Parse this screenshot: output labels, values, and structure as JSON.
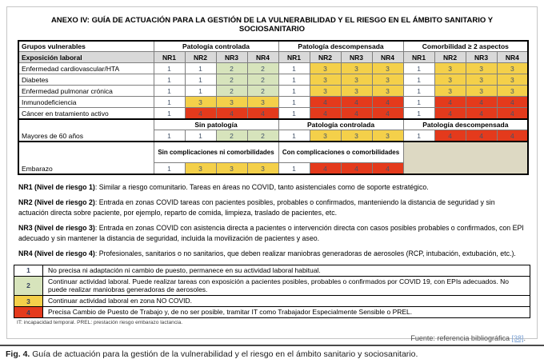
{
  "title": "ANEXO IV: GUÍA DE ACTUACIÓN PARA LA GESTIÓN DE LA VULNERABILIDAD Y EL RIESGO EN EL ÁMBITO SANITARIO Y SOCIOSANITARIO",
  "colors": {
    "level_1": "#FFFFFF",
    "level_2": "#D7E4BC",
    "level_3": "#F4D04A",
    "level_4": "#E43A1C",
    "header_gray": "#D9D9D9",
    "blank_beige": "#DDD9C3",
    "value_text": "#44546A",
    "link_blue": "#79A0D4"
  },
  "main_table": {
    "corner_row1": "Grupos vulnerables",
    "corner_row2": "Exposición laboral",
    "groups": [
      "Patología controlada",
      "Patología descompensada",
      "Comorbilidad ≥ 2 aspectos"
    ],
    "nr_headers": [
      "NR1",
      "NR2",
      "NR3",
      "NR4"
    ],
    "rows": [
      {
        "label": "Enfermedad cardiovascular/HTA",
        "values": [
          1,
          1,
          2,
          2,
          1,
          3,
          3,
          3,
          1,
          3,
          3,
          3
        ]
      },
      {
        "label": "Diabetes",
        "values": [
          1,
          1,
          2,
          2,
          1,
          3,
          3,
          3,
          1,
          3,
          3,
          3
        ]
      },
      {
        "label": "Enfermedad pulmonar crónica",
        "values": [
          1,
          1,
          2,
          2,
          1,
          3,
          3,
          3,
          1,
          3,
          3,
          3
        ]
      },
      {
        "label": "Inmunodeficiencia",
        "values": [
          1,
          3,
          3,
          3,
          1,
          4,
          4,
          4,
          1,
          4,
          4,
          4
        ]
      },
      {
        "label": "Cáncer en tratamiento activo",
        "values": [
          1,
          4,
          4,
          4,
          1,
          4,
          4,
          4,
          1,
          4,
          4,
          4
        ]
      }
    ],
    "blocks": [
      {
        "label": "Mayores de 60 años",
        "subheaders": [
          "Sin patología",
          "Patología controlada",
          "Patología descompensada"
        ],
        "values": [
          1,
          1,
          2,
          2,
          1,
          3,
          3,
          3,
          1,
          4,
          4,
          4
        ],
        "blank_group": false
      },
      {
        "label": "Embarazo",
        "subheaders": [
          "Sin complicaciones ni comorbilidades",
          "Con complicaciones o comorbilidades"
        ],
        "values": [
          1,
          3,
          3,
          3,
          1,
          4,
          4,
          4
        ],
        "blank_group": true
      }
    ]
  },
  "definitions": [
    {
      "term": "NR1 (Nivel de riesgo 1)",
      "text": ": Similar a riesgo comunitario. Tareas en áreas no COVID, tanto asistenciales como de soporte estratégico."
    },
    {
      "term": "NR2 (Nivel de riesgo 2)",
      "text": ": Entrada en zonas COVID tareas con pacientes posibles, probables o confirmados, manteniendo la distancia de seguridad y sin actuación directa sobre paciente, por ejemplo, reparto de comida, limpieza, traslado de pacientes, etc."
    },
    {
      "term": "NR3 (Nivel de riesgo 3)",
      "text": ": Entrada en zonas COVID con asistencia directa a pacientes o intervención directa con casos posibles probables o confirmados, con EPI adecuado y sin mantener la distancia de seguridad, incluida la movilización de pacientes y aseo."
    },
    {
      "term": "NR4 (Nivel de riesgo 4)",
      "text": ": Profesionales, sanitarios o no sanitarios, que deben realizar maniobras generadoras de aerosoles (RCP, intubación, extubación, etc.)."
    }
  ],
  "legend": [
    {
      "value": 1,
      "text": "No precisa ni adaptación ni cambio de puesto, permanece en su actividad laboral habitual."
    },
    {
      "value": 2,
      "text": "Continuar actividad laboral. Puede realizar tareas con exposición a pacientes posibles, probables o confirmados por COVID 19, con EPIs adecuados. No puede realizar maniobras generadoras de aerosoles."
    },
    {
      "value": 3,
      "text": "Continuar actividad laboral en zona NO COVID."
    },
    {
      "value": 4,
      "text": "Precisa Cambio de Puesto de Trabajo y, de no ser posible, tramitar IT como Trabajador Especialmente Sensible o PREL."
    }
  ],
  "footnote": "IT: incapacidad temporal. PREL: prestación riesgo embarazo lactancia.",
  "source": {
    "prefix": "Fuente: referencia bibliográfica ",
    "link": "[38]",
    "suffix": "."
  },
  "caption": {
    "label": "Fig. 4.",
    "text": " Guía de actuación para la gestión de la vulnerabilidad y el riesgo en el ámbito sanitario y sociosanitario."
  }
}
